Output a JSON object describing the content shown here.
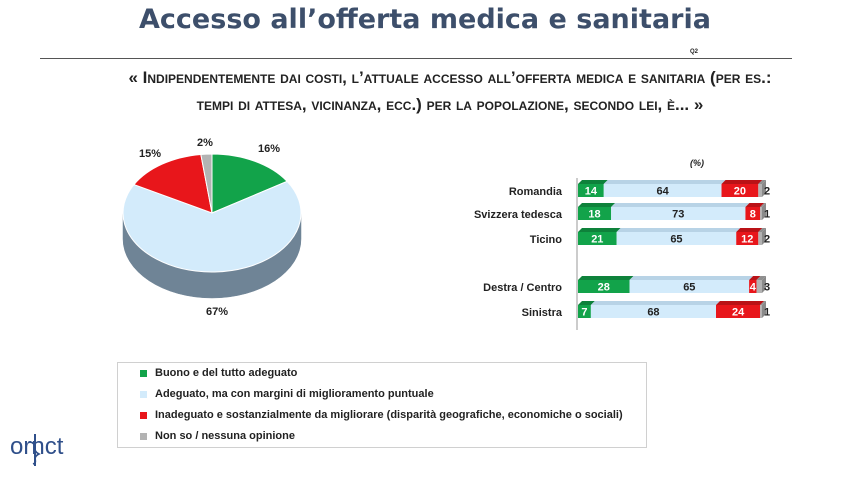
{
  "title": "Accesso all’offerta medica e sanitaria",
  "question_code": "Q2",
  "question": "« Indipendentemente dai costi, l’attuale accesso all’offerta medica e sanitaria (per es.: tempi di attesa, vicinanza, ecc.) per la popolazione, secondo lei, è... »",
  "percent_note": "(%)",
  "colors": {
    "green": "#12a34a",
    "lightblue": "#d3ebfb",
    "red": "#e8161b",
    "grey": "#b3b3b3"
  },
  "chart_data": [
    {
      "type": "pie",
      "slices": [
        {
          "name": "Buono e del tutto adeguato",
          "value": 16,
          "label": "16%",
          "color": "#12a34a"
        },
        {
          "name": "Adeguato, ma con margini di miglioramento puntuale",
          "value": 67,
          "label": "67%",
          "color": "#d3ebfb"
        },
        {
          "name": "Inadeguato e sostanzialmente da migliorare (disparità geografiche, economiche o sociali)",
          "value": 15,
          "label": "15%",
          "color": "#e8161b"
        },
        {
          "name": "Non so / nessuna opinione",
          "value": 2,
          "label": "2%",
          "color": "#b3b3b3"
        }
      ]
    },
    {
      "type": "bar",
      "orientation": "horizontal",
      "stacked": true,
      "xlim": [
        0,
        100
      ],
      "groups": [
        {
          "categories": [
            "Romandia",
            "Svizzera tedesca",
            "Ticino"
          ]
        },
        {
          "categories": [
            "Destra / Centro",
            "Sinistra"
          ]
        }
      ],
      "categories": [
        "Romandia",
        "Svizzera tedesca",
        "Ticino",
        "Destra / Centro",
        "Sinistra"
      ],
      "series": [
        {
          "name": "Buono e del tutto adeguato",
          "color": "#12a34a",
          "values": [
            14,
            18,
            21,
            28,
            7
          ]
        },
        {
          "name": "Adeguato, ma con margini di miglioramento puntuale",
          "color": "#d3ebfb",
          "values": [
            64,
            73,
            65,
            65,
            68
          ]
        },
        {
          "name": "Inadeguato e sostanzialmente da migliorare (disparità geografiche, economiche o sociali)",
          "color": "#e8161b",
          "values": [
            20,
            8,
            12,
            4,
            24
          ]
        },
        {
          "name": "Non so / nessuna opinione",
          "color": "#b3b3b3",
          "values": [
            2,
            1,
            2,
            3,
            1
          ]
        }
      ]
    }
  ],
  "legend": [
    {
      "label": "Buono e del tutto adeguato",
      "color": "#12a34a"
    },
    {
      "label": "Adeguato, ma con margini di miglioramento puntuale",
      "color": "#d3ebfb"
    },
    {
      "label": "Inadeguato e sostanzialmente da migliorare (disparità geografiche, economiche o sociali)",
      "color": "#e8161b"
    },
    {
      "label": "Non so / nessuna opinione",
      "color": "#b3b3b3"
    }
  ],
  "logo": {
    "text": "ornct",
    "icon": "caduceus-logo-icon"
  }
}
